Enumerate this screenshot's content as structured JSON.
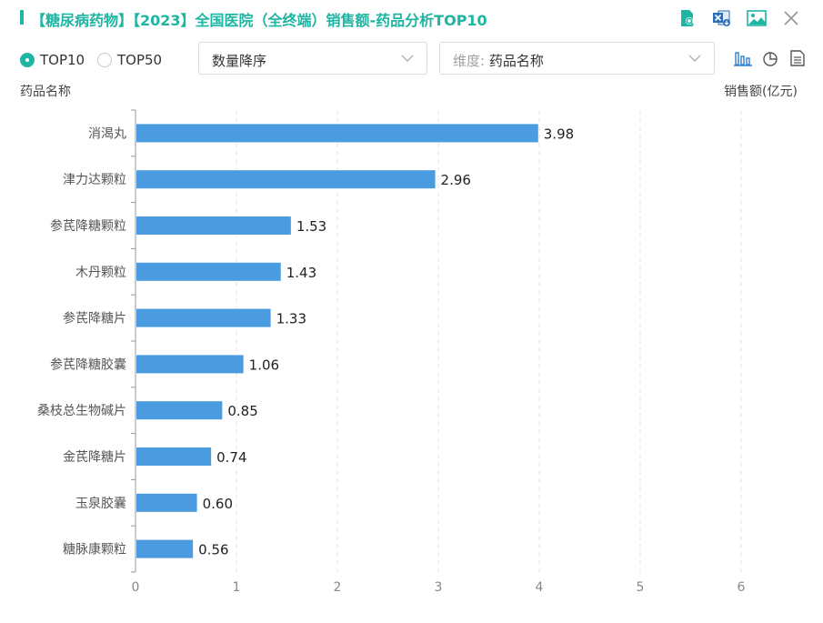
{
  "header": {
    "title": "【糖尿病药物】【2023】全国医院（全终端）销售额-药品分析TOP10",
    "accent_color": "#1fb5a3",
    "actions": [
      "search-document-icon",
      "excel-export-icon",
      "image-export-icon",
      "close-icon"
    ]
  },
  "controls": {
    "radio": [
      {
        "label": "TOP10",
        "checked": true
      },
      {
        "label": "TOP50",
        "checked": false
      }
    ],
    "sort_select": {
      "value": "数量降序"
    },
    "dimension_select": {
      "prefix": "维度:",
      "value": "药品名称"
    },
    "view_icons": [
      "bar-chart-icon",
      "pie-chart-icon",
      "table-icon"
    ]
  },
  "axis_captions": {
    "y": "药品名称",
    "x": "销售额(亿元)"
  },
  "chart_data": {
    "type": "bar",
    "orientation": "horizontal",
    "categories": [
      "消渴丸",
      "津力达颗粒",
      "参芪降糖颗粒",
      "木丹颗粒",
      "参芪降糖片",
      "参芪降糖胶囊",
      "桑枝总生物碱片",
      "金芪降糖片",
      "玉泉胶囊",
      "糖脉康颗粒"
    ],
    "values": [
      3.98,
      2.96,
      1.53,
      1.43,
      1.33,
      1.06,
      0.85,
      0.74,
      0.6,
      0.56
    ],
    "value_labels": [
      "3.98",
      "2.96",
      "1.53",
      "1.43",
      "1.33",
      "1.06",
      "0.85",
      "0.74",
      "0.60",
      "0.56"
    ],
    "xlim": [
      0,
      6
    ],
    "xticks": [
      "0",
      "1",
      "2",
      "3",
      "4",
      "5",
      "6"
    ],
    "xlabel": "销售额(亿元)",
    "ylabel": "药品名称",
    "grid": "vertical dashed",
    "bar_color": "#4a9be0"
  }
}
